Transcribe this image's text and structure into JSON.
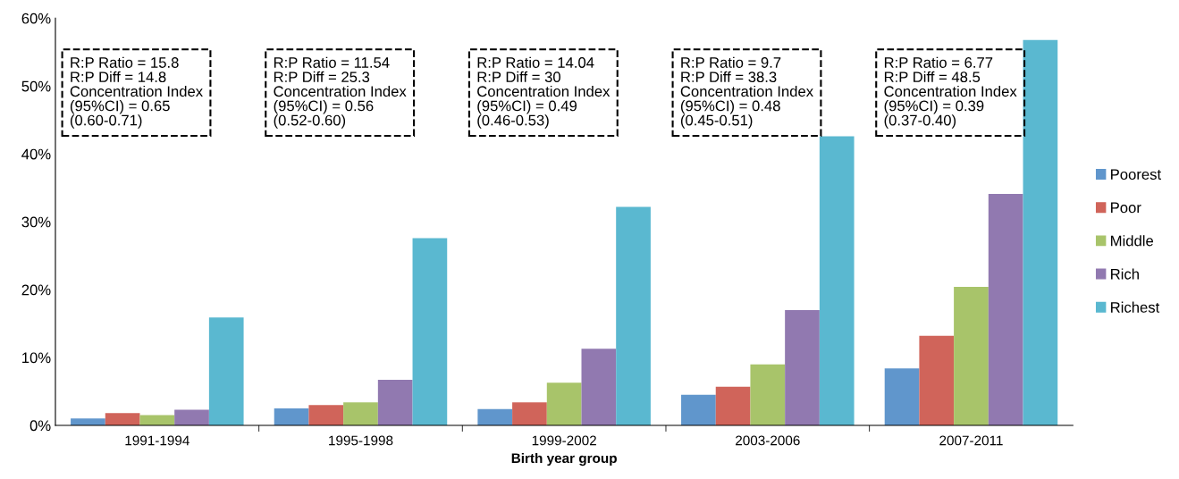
{
  "chart_data": {
    "type": "bar",
    "xlabel": "Birth year group",
    "categories": [
      "1991-1994",
      "1995-1998",
      "1999-2002",
      "2003-2006",
      "2007-2011"
    ],
    "series": [
      {
        "name": "Poorest",
        "color": "#6096cc",
        "values": [
          1.0,
          2.5,
          2.4,
          4.5,
          8.4
        ]
      },
      {
        "name": "Poor",
        "color": "#d0645a",
        "values": [
          1.8,
          3.0,
          3.4,
          5.7,
          13.2
        ]
      },
      {
        "name": "Middle",
        "color": "#a8c46a",
        "values": [
          1.5,
          3.4,
          6.3,
          9.0,
          20.4
        ]
      },
      {
        "name": "Rich",
        "color": "#9179b0",
        "values": [
          2.3,
          6.7,
          11.3,
          17.0,
          34.1
        ]
      },
      {
        "name": "Richest",
        "color": "#5ab8d0",
        "values": [
          15.9,
          27.6,
          32.2,
          42.6,
          56.8
        ]
      }
    ],
    "ylim": [
      0,
      60
    ],
    "yticks": [
      {
        "value": 0,
        "label": "0%"
      },
      {
        "value": 10,
        "label": "10%"
      },
      {
        "value": 20,
        "label": "20%"
      },
      {
        "value": 30,
        "label": "30%"
      },
      {
        "value": 40,
        "label": "40%"
      },
      {
        "value": 50,
        "label": "50%"
      },
      {
        "value": 60,
        "label": "60%"
      }
    ],
    "annotations": [
      "R:P Ratio = 15.8\nR:P Diff = 14.8\nConcentration Index\n(95%CI) = 0.65\n(0.60-0.71)",
      "R:P Ratio = 11.54\nR:P Diff = 25.3\nConcentration Index\n(95%CI) = 0.56\n(0.52-0.60)",
      "R:P Ratio = 14.04\nR:P Diff = 30\nConcentration Index\n(95%CI) = 0.49\n(0.46-0.53)",
      "R:P Ratio = 9.7\nR:P Diff = 38.3\nConcentration Index\n(95%CI) = 0.48\n(0.45-0.51)",
      "R:P Ratio = 6.77\nR:P Diff = 48.5\nConcentration Index\n(95%CI) = 0.39\n(0.37-0.40)"
    ],
    "grid": false,
    "legend": "right"
  }
}
